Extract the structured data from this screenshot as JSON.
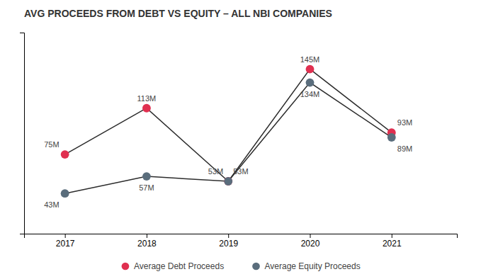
{
  "chart_data": {
    "type": "line",
    "title": "AVG PROCEEDS FROM DEBT VS EQUITY – ALL NBI COMPANIES",
    "x": [
      2017,
      2018,
      2019,
      2020,
      2021
    ],
    "series": [
      {
        "name": "Average Debt Proceeds",
        "color": "#e03050",
        "marker": "o",
        "values": [
          75,
          113,
          53,
          145,
          93
        ],
        "value_labels": [
          "75M",
          "113M",
          "53M",
          "145M",
          "93M"
        ]
      },
      {
        "name": "Average Equity Proceeds",
        "color": "#5a6d7c",
        "marker": "o",
        "values": [
          43,
          57,
          53,
          134,
          89
        ],
        "value_labels": [
          "43M",
          "57M",
          "53M",
          "134M",
          "89M"
        ]
      }
    ],
    "color": "#2c2c2c",
    "xlim": [
      2016.5,
      2021.8
    ],
    "xticks": [
      2017,
      2018,
      2019,
      2020,
      2021
    ],
    "ylim": [
      10,
      175
    ],
    "data_labels": true,
    "tick_labels": "x",
    "grid": false,
    "legend": "bottom"
  }
}
